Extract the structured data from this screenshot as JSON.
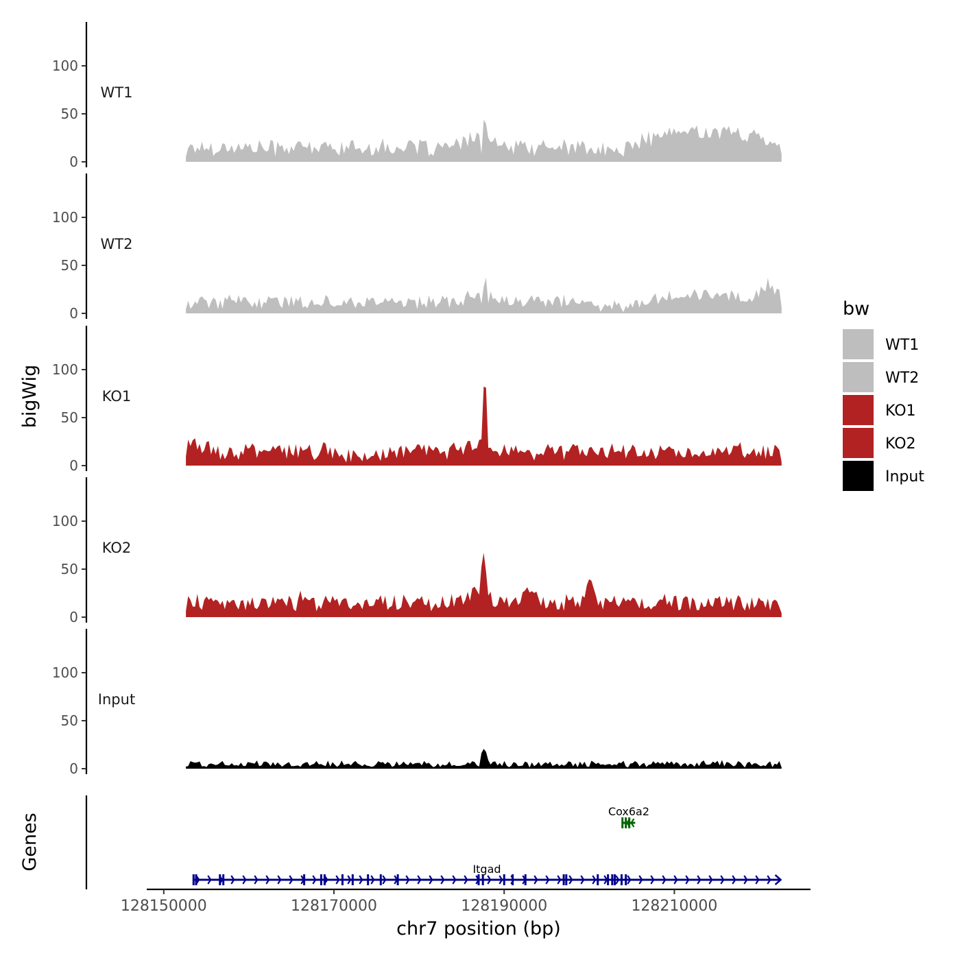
{
  "chart_data": {
    "type": "area",
    "title": "",
    "ylabel": "bigWig",
    "genes_ylabel": "Genes",
    "xlabel": "chr7 position (bp)",
    "chromosome": "chr7",
    "xlim": [
      128148000,
      128226000
    ],
    "data_range": [
      128152600,
      128222600
    ],
    "ylim": [
      0,
      140
    ],
    "yticks": [
      0,
      50,
      100
    ],
    "xticks": [
      128150000,
      128170000,
      128190000,
      128210000
    ],
    "xtick_labels": [
      "128150000",
      "128170000",
      "128190000",
      "128210000"
    ],
    "legend": {
      "title": "bw",
      "position": "right",
      "entries": [
        {
          "label": "WT1",
          "color": "#bebebe"
        },
        {
          "label": "WT2",
          "color": "#bebebe"
        },
        {
          "label": "KO1",
          "color": "#b22222"
        },
        {
          "label": "KO2",
          "color": "#b22222"
        },
        {
          "label": "Input",
          "color": "#000000"
        }
      ]
    },
    "tracks": [
      {
        "name": "WT1",
        "color": "#bebebe",
        "base": 15,
        "amp": 10,
        "bins": 260,
        "features": [
          {
            "pos": 128187000,
            "width": 1600,
            "height": 12
          },
          {
            "pos": 128187400,
            "width": 120,
            "height": -14
          },
          {
            "pos": 128187750,
            "width": 140,
            "height": 42
          },
          {
            "pos": 128203000,
            "width": 3500,
            "height": -10
          },
          {
            "pos": 128211000,
            "width": 9000,
            "height": 14
          },
          {
            "pos": 128218500,
            "width": 7000,
            "height": 6
          }
        ]
      },
      {
        "name": "WT2",
        "color": "#bebebe",
        "base": 12,
        "amp": 8,
        "bins": 260,
        "features": [
          {
            "pos": 128187000,
            "width": 1600,
            "height": 10
          },
          {
            "pos": 128187400,
            "width": 120,
            "height": -12
          },
          {
            "pos": 128187750,
            "width": 140,
            "height": 33
          },
          {
            "pos": 128203500,
            "width": 3500,
            "height": -8
          },
          {
            "pos": 128212000,
            "width": 9000,
            "height": 8
          },
          {
            "pos": 128221000,
            "width": 1200,
            "height": 15
          }
        ]
      },
      {
        "name": "KO1",
        "color": "#b22222",
        "base": 15,
        "amp": 10,
        "bins": 260,
        "features": [
          {
            "pos": 128187000,
            "width": 1600,
            "height": 10
          },
          {
            "pos": 128187350,
            "width": 160,
            "height": -16
          },
          {
            "pos": 128187750,
            "width": 160,
            "height": 118
          },
          {
            "pos": 128187350,
            "width": 250,
            "height": 20
          },
          {
            "pos": 128174000,
            "width": 3000,
            "height": -6
          },
          {
            "pos": 128153500,
            "width": 2000,
            "height": 8
          }
        ]
      },
      {
        "name": "KO2",
        "color": "#b22222",
        "base": 15,
        "amp": 10,
        "bins": 260,
        "features": [
          {
            "pos": 128187000,
            "width": 1600,
            "height": 10
          },
          {
            "pos": 128187350,
            "width": 200,
            "height": 28
          },
          {
            "pos": 128187550,
            "width": 150,
            "height": -14
          },
          {
            "pos": 128187700,
            "width": 160,
            "height": 80
          },
          {
            "pos": 128193000,
            "width": 900,
            "height": 14
          },
          {
            "pos": 128200000,
            "width": 900,
            "height": 18
          },
          {
            "pos": 128166500,
            "width": 500,
            "height": 12
          }
        ]
      },
      {
        "name": "Input",
        "color": "#000000",
        "base": 5,
        "amp": 4,
        "bins": 260,
        "features": [
          {
            "pos": 128187700,
            "width": 250,
            "height": 17
          },
          {
            "pos": 128187350,
            "width": 150,
            "height": 7
          }
        ]
      }
    ],
    "genes": [
      {
        "name": "Itgad",
        "color": "#00008b",
        "strand": "+",
        "start": 128153500,
        "end": 128222500,
        "exons": [
          128153500,
          128153800,
          128156600,
          128157000,
          128166500,
          128168500,
          128168900,
          128171000,
          128172200,
          128174000,
          128175500,
          128177500,
          128187000,
          128187500,
          128190000,
          128191000,
          128192500,
          128197000,
          128197300,
          128201000,
          128202200,
          128202700,
          128203000,
          128203800,
          128204300
        ]
      },
      {
        "name": "Cox6a2",
        "color": "#006400",
        "strand": "-",
        "start": 128203800,
        "end": 128205400,
        "exons": [
          128203900,
          128204300,
          128204700
        ]
      }
    ]
  }
}
